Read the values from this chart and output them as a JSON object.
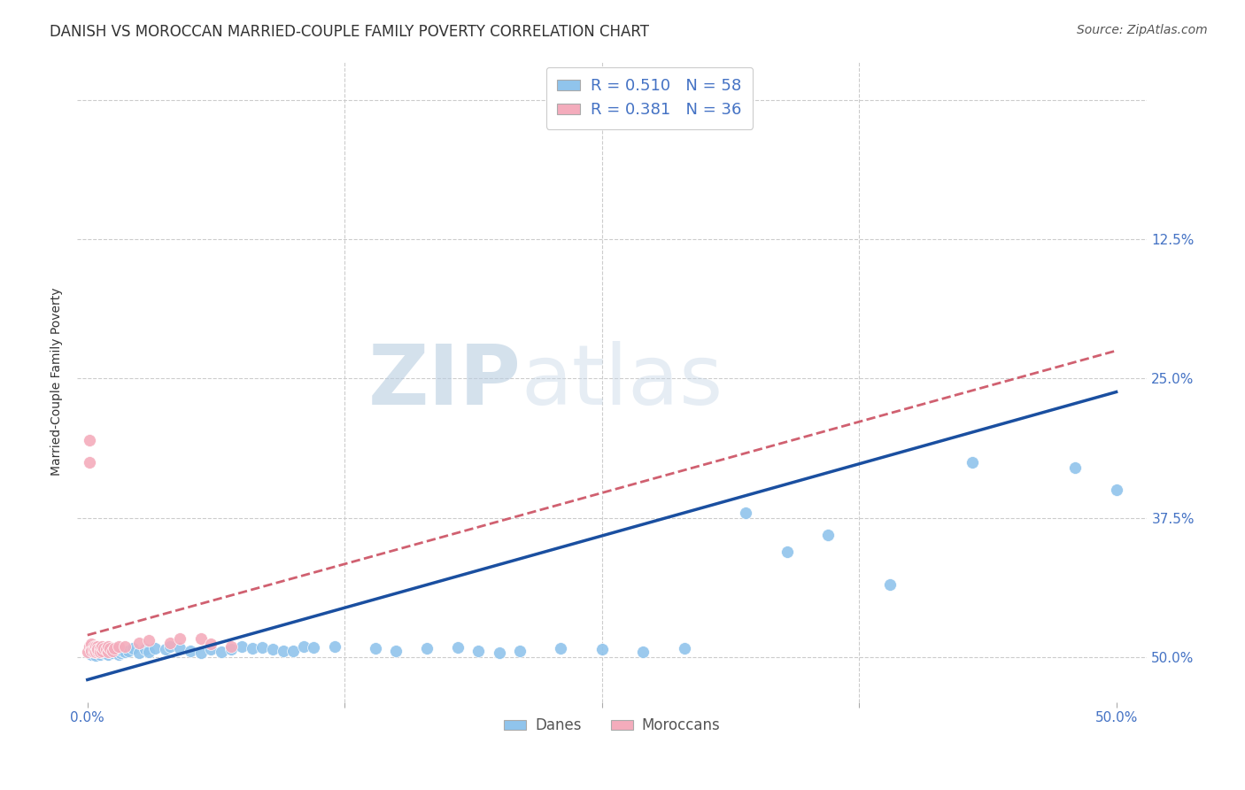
{
  "title": "DANISH VS MOROCCAN MARRIED-COUPLE FAMILY POVERTY CORRELATION CHART",
  "source": "Source: ZipAtlas.com",
  "ylabel": "Married-Couple Family Poverty",
  "xlabel": "",
  "watermark_zip": "ZIP",
  "watermark_atlas": "atlas",
  "xlim": [
    -0.005,
    0.515
  ],
  "ylim": [
    -0.04,
    0.535
  ],
  "yticks": [
    0.0,
    0.125,
    0.25,
    0.375,
    0.5
  ],
  "xticks": [
    0.0,
    0.125,
    0.25,
    0.375,
    0.5
  ],
  "xtick_labels": [
    "0.0%",
    "",
    "",
    "",
    "50.0%"
  ],
  "ytick_labels_right": [
    "50.0%",
    "37.5%",
    "25.0%",
    "12.5%",
    ""
  ],
  "danes_color": "#90C4EC",
  "danes_edge_color": "#90C4EC",
  "moroccans_color": "#F4ACBC",
  "moroccans_edge_color": "#F4ACBC",
  "danes_line_color": "#1A4FA0",
  "moroccans_line_color": "#D06070",
  "danes_R": 0.51,
  "danes_N": 58,
  "moroccans_R": 0.381,
  "moroccans_N": 36,
  "danes_line_x": [
    0.0,
    0.5
  ],
  "danes_line_y": [
    -0.02,
    0.238
  ],
  "moroccans_line_x": [
    0.0,
    0.5
  ],
  "moroccans_line_y": [
    0.02,
    0.275
  ],
  "danes_scatter_x": [
    0.002,
    0.003,
    0.004,
    0.005,
    0.006,
    0.007,
    0.008,
    0.009,
    0.01,
    0.011,
    0.012,
    0.013,
    0.014,
    0.015,
    0.016,
    0.017,
    0.018,
    0.02,
    0.022,
    0.025,
    0.028,
    0.03,
    0.033,
    0.038,
    0.04,
    0.045,
    0.05,
    0.055,
    0.06,
    0.065,
    0.07,
    0.075,
    0.08,
    0.085,
    0.09,
    0.095,
    0.1,
    0.105,
    0.11,
    0.12,
    0.14,
    0.15,
    0.165,
    0.18,
    0.19,
    0.2,
    0.21,
    0.23,
    0.25,
    0.27,
    0.29,
    0.32,
    0.34,
    0.36,
    0.39,
    0.43,
    0.48,
    0.5
  ],
  "danes_scatter_y": [
    0.003,
    0.005,
    0.002,
    0.007,
    0.003,
    0.005,
    0.004,
    0.006,
    0.003,
    0.005,
    0.004,
    0.006,
    0.005,
    0.003,
    0.004,
    0.006,
    0.005,
    0.006,
    0.008,
    0.004,
    0.007,
    0.005,
    0.008,
    0.007,
    0.01,
    0.008,
    0.006,
    0.004,
    0.007,
    0.005,
    0.007,
    0.01,
    0.008,
    0.009,
    0.007,
    0.006,
    0.006,
    0.01,
    0.009,
    0.01,
    0.008,
    0.006,
    0.008,
    0.009,
    0.006,
    0.004,
    0.006,
    0.008,
    0.007,
    0.005,
    0.008,
    0.13,
    0.095,
    0.11,
    0.065,
    0.175,
    0.17,
    0.15
  ],
  "moroccans_scatter_x": [
    0.0,
    0.001,
    0.001,
    0.001,
    0.002,
    0.002,
    0.002,
    0.003,
    0.003,
    0.003,
    0.004,
    0.004,
    0.004,
    0.005,
    0.005,
    0.005,
    0.006,
    0.006,
    0.007,
    0.007,
    0.008,
    0.009,
    0.01,
    0.01,
    0.011,
    0.012,
    0.013,
    0.015,
    0.018,
    0.025,
    0.03,
    0.04,
    0.045,
    0.055,
    0.06,
    0.07
  ],
  "moroccans_scatter_y": [
    0.005,
    0.195,
    0.175,
    0.01,
    0.008,
    0.012,
    0.006,
    0.005,
    0.01,
    0.007,
    0.008,
    0.01,
    0.005,
    0.006,
    0.01,
    0.007,
    0.008,
    0.005,
    0.006,
    0.01,
    0.008,
    0.007,
    0.005,
    0.01,
    0.008,
    0.006,
    0.008,
    0.01,
    0.01,
    0.013,
    0.015,
    0.013,
    0.017,
    0.017,
    0.012,
    0.01
  ],
  "background_color": "#FFFFFF",
  "grid_color": "#CCCCCC",
  "title_fontsize": 12,
  "axis_label_fontsize": 10,
  "tick_fontsize": 11,
  "legend_fontsize": 13,
  "source_fontsize": 10
}
